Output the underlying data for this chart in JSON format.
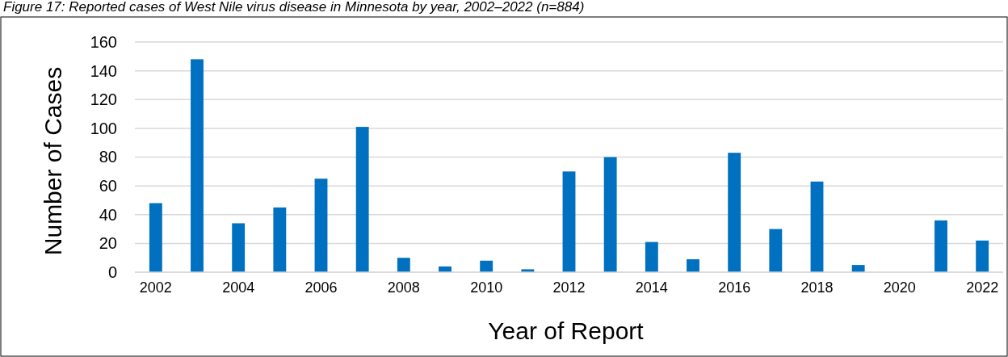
{
  "chart_data": {
    "type": "bar",
    "title": "Figure 17: Reported cases of West Nile virus disease in Minnesota by year, 2002–2022 (n=884)",
    "xlabel": "Year of Report",
    "ylabel": "Number of Cases",
    "categories": [
      "2002",
      null,
      "2004",
      null,
      "2006",
      null,
      "2008",
      null,
      "2010",
      null,
      "2012",
      null,
      "2014",
      null,
      "2016",
      null,
      "2018",
      null,
      "2020",
      null,
      "2022"
    ],
    "values": [
      48,
      148,
      34,
      45,
      65,
      101,
      10,
      4,
      8,
      2,
      70,
      80,
      21,
      9,
      83,
      30,
      63,
      5,
      0,
      36,
      22
    ],
    "color": "#0070c0",
    "ylim": [
      0,
      160
    ],
    "yticks": [
      0,
      20,
      40,
      60,
      80,
      100,
      120,
      140,
      160
    ],
    "grid": "y"
  }
}
